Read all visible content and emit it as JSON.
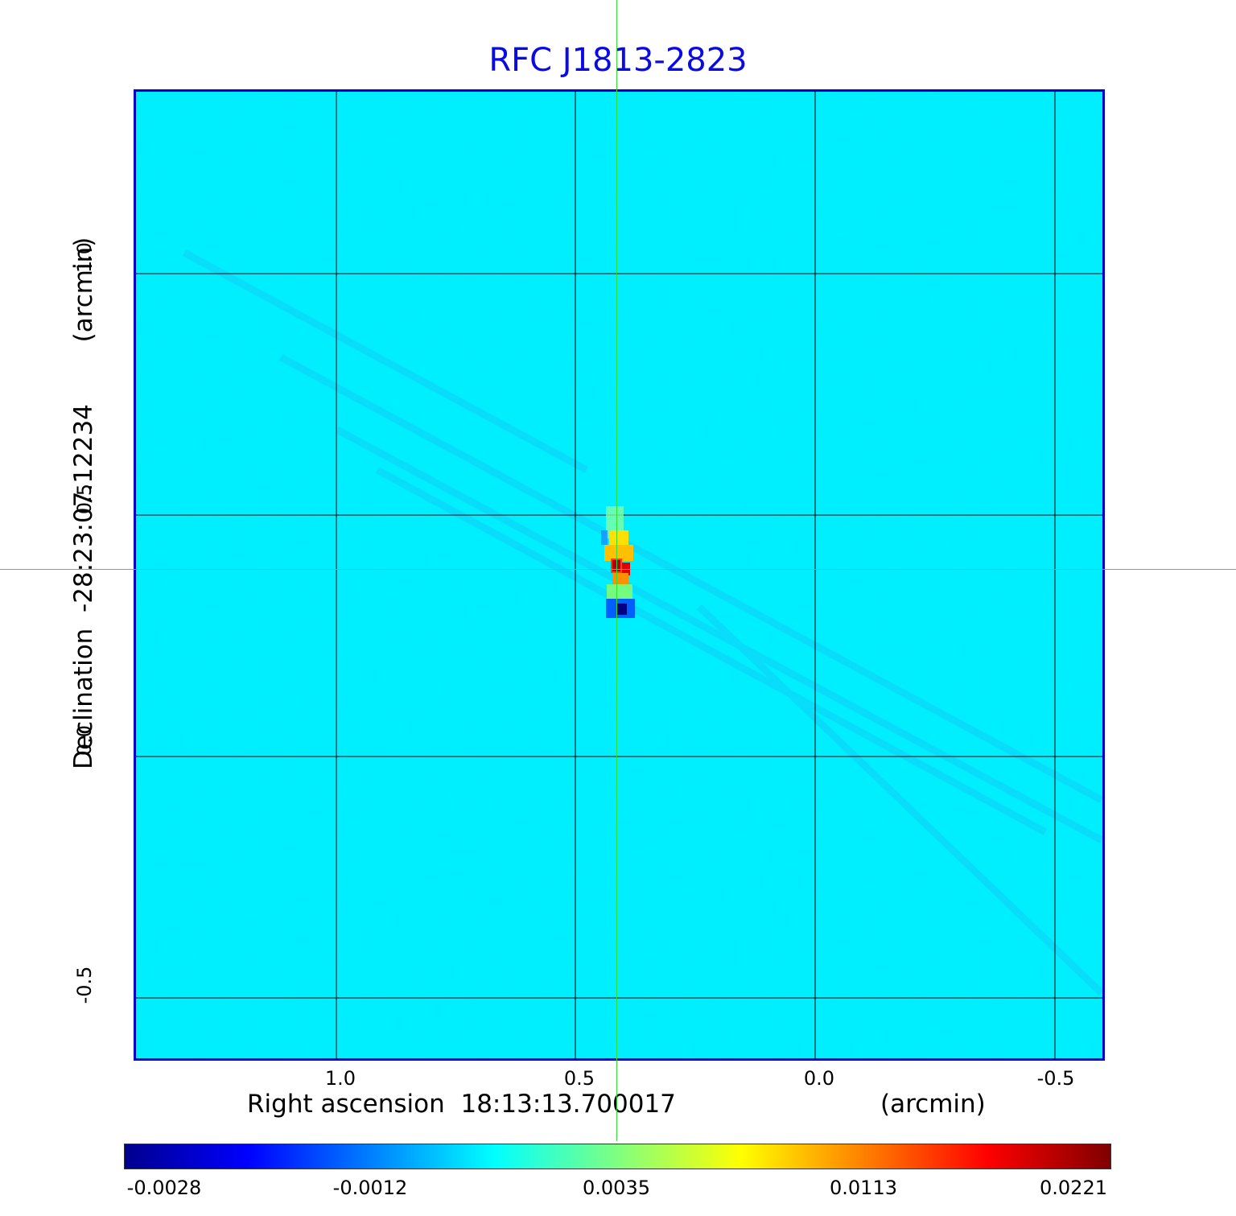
{
  "title": "RFC J1813-2823",
  "x_axis": {
    "label": "Right ascension  18:13:13.700017",
    "unit": "(arcmin)",
    "ticks": [
      "1.0",
      "0.5",
      "0.0",
      "-0.5"
    ]
  },
  "y_axis": {
    "label": "Declination  -28:23:07.12234",
    "unit": "(arcmin)",
    "ticks": [
      "1.0",
      "0.5",
      "0.0",
      "-0.5"
    ]
  },
  "colorbar": {
    "colormap": "jet",
    "tick_labels": [
      "-0.0028",
      "-0.0012",
      "0.0035",
      "0.0113",
      "0.0221"
    ],
    "colors": [
      "#00008f",
      "#0000ff",
      "#0080ff",
      "#00ffff",
      "#80ff80",
      "#ffff00",
      "#ff8000",
      "#ff0000",
      "#800000"
    ]
  },
  "colors": {
    "title": "#0a0ae6",
    "frame": "#0000cc",
    "crosshair": "#33dd33",
    "background_map": "#00f0ff"
  }
}
